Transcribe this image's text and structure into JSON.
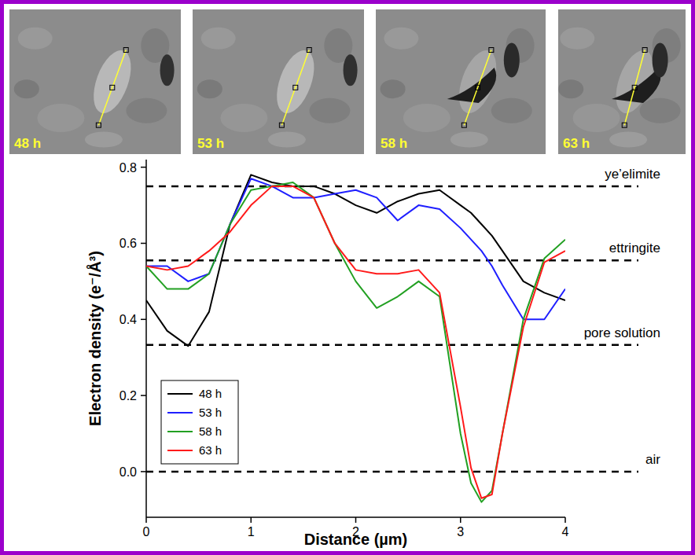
{
  "chart_data": {
    "type": "line",
    "x_label": "Distance (µm)",
    "y_label": "Electron density (e⁻/Å³)",
    "x": [
      0,
      0.2,
      0.4,
      0.6,
      0.8,
      1.0,
      1.2,
      1.4,
      1.6,
      1.8,
      2.0,
      2.2,
      2.4,
      2.6,
      2.8,
      3.0,
      3.1,
      3.2,
      3.3,
      3.4,
      3.6,
      3.8,
      4.0
    ],
    "series": [
      {
        "name": "48 h",
        "color": "#000000",
        "values": [
          0.45,
          0.37,
          0.33,
          0.42,
          0.65,
          0.78,
          0.76,
          0.75,
          0.75,
          0.73,
          0.7,
          0.68,
          0.71,
          0.73,
          0.74,
          0.7,
          0.68,
          0.65,
          0.62,
          0.58,
          0.5,
          0.47,
          0.45
        ]
      },
      {
        "name": "53 h",
        "color": "#1f1fff",
        "values": [
          0.54,
          0.54,
          0.5,
          0.52,
          0.65,
          0.77,
          0.75,
          0.72,
          0.72,
          0.73,
          0.74,
          0.72,
          0.66,
          0.7,
          0.69,
          0.64,
          0.61,
          0.58,
          0.54,
          0.49,
          0.4,
          0.4,
          0.48
        ]
      },
      {
        "name": "58 h",
        "color": "#22a022",
        "values": [
          0.54,
          0.48,
          0.48,
          0.52,
          0.65,
          0.74,
          0.75,
          0.76,
          0.72,
          0.6,
          0.5,
          0.43,
          0.46,
          0.5,
          0.46,
          0.1,
          -0.03,
          -0.08,
          -0.05,
          0.1,
          0.4,
          0.56,
          0.61
        ]
      },
      {
        "name": "63 h",
        "color": "#ff1a1a",
        "values": [
          0.54,
          0.53,
          0.54,
          0.58,
          0.63,
          0.7,
          0.75,
          0.75,
          0.72,
          0.6,
          0.53,
          0.52,
          0.52,
          0.53,
          0.47,
          0.17,
          0.01,
          -0.07,
          -0.06,
          0.1,
          0.38,
          0.55,
          0.58
        ]
      }
    ],
    "xlim": [
      0,
      4
    ],
    "xticks": [
      0,
      1,
      2,
      3,
      4
    ],
    "ylim": [
      -0.12,
      0.82
    ],
    "yticks": [
      {
        "value": 0,
        "label": "0.0"
      },
      0.2,
      0.4,
      0.6,
      0.8
    ],
    "annotations": [
      {
        "text": "ye’elimite",
        "y": 0.75
      },
      {
        "text": "ettringite",
        "y": 0.555
      },
      {
        "text": "pore solution",
        "y": 0.333
      },
      {
        "text": "air",
        "y": 0
      }
    ],
    "legend": "lower left",
    "grid": false
  },
  "images": [
    {
      "label": "48 h"
    },
    {
      "label": "53 h"
    },
    {
      "label": "58 h"
    },
    {
      "label": "63 h"
    }
  ]
}
